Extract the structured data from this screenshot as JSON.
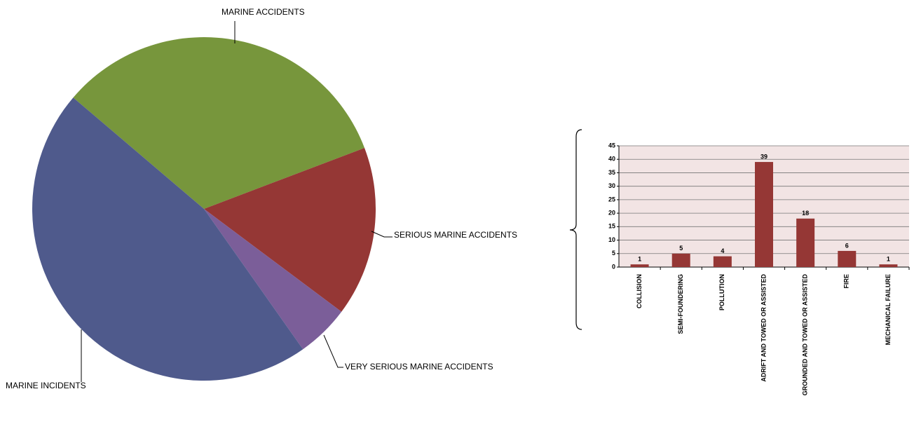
{
  "chart_data": [
    {
      "type": "pie",
      "categories": [
        "MARINE ACCIDENTS",
        "SERIOUS MARINE  ACCIDENTS",
        "VERY SERIOUS  MARINE  ACCIDENTS",
        "MARINE INCIDENTS"
      ],
      "values": [
        33,
        16,
        5,
        46
      ],
      "colors": [
        "#77963c",
        "#953735",
        "#7b5e99",
        "#4f5a8c"
      ]
    },
    {
      "type": "bar",
      "categories": [
        "COLLISION",
        "SEMI-FOUNDERING",
        "POLLUTION",
        "ADRIFT AND TOWED OR ASSISTED",
        "GROUNDED AND TOWED OR ASSISTED",
        "FIRE",
        "MECHANICAL FAILURE"
      ],
      "values": [
        1,
        5,
        4,
        39,
        18,
        6,
        1
      ],
      "color": "#953735",
      "ylim": [
        0,
        45
      ],
      "yticks": [
        0,
        5,
        10,
        15,
        20,
        25,
        30,
        35,
        40,
        45
      ],
      "grid": true
    }
  ]
}
